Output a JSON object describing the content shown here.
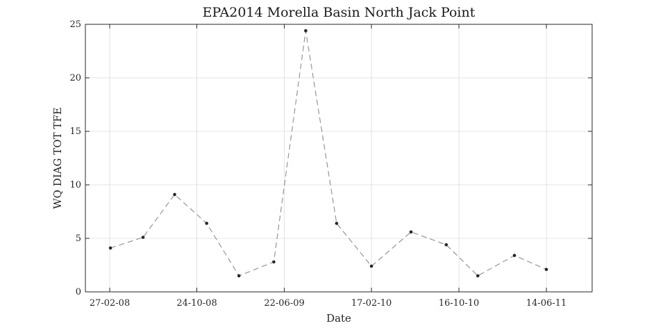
{
  "chart_data": {
    "type": "line",
    "title": "EPA2014 Morella Basin North Jack Point",
    "xlabel": "Date",
    "ylabel": "WQ DIAG TOT TFE",
    "x_axis_type": "date",
    "date_format": "DD-MM-YY",
    "xlim": [
      "2007-12-22",
      "2011-10-18"
    ],
    "ylim": [
      0,
      25
    ],
    "x_ticks": [
      "27-02-08",
      "24-10-08",
      "22-06-09",
      "17-02-10",
      "16-10-10",
      "14-06-11"
    ],
    "x_tick_dates": [
      "2008-02-27",
      "2008-10-24",
      "2009-06-22",
      "2010-02-17",
      "2010-10-16",
      "2011-06-14"
    ],
    "y_ticks": [
      0,
      5,
      10,
      15,
      20,
      25
    ],
    "grid": true,
    "series": [
      {
        "line_style": "dashed",
        "marker": "dot",
        "color": "#8c8c8c",
        "marker_color": "#262626",
        "points": [
          {
            "x": "2008-02-29",
            "y": 4.1
          },
          {
            "x": "2008-05-29",
            "y": 5.1
          },
          {
            "x": "2008-08-24",
            "y": 9.1
          },
          {
            "x": "2008-11-20",
            "y": 6.4
          },
          {
            "x": "2009-02-17",
            "y": 1.5
          },
          {
            "x": "2009-05-24",
            "y": 2.8
          },
          {
            "x": "2009-08-20",
            "y": 24.4
          },
          {
            "x": "2009-11-13",
            "y": 6.4
          },
          {
            "x": "2010-02-17",
            "y": 2.4
          },
          {
            "x": "2010-06-06",
            "y": 5.6
          },
          {
            "x": "2010-09-11",
            "y": 4.4
          },
          {
            "x": "2010-12-07",
            "y": 1.5
          },
          {
            "x": "2011-03-18",
            "y": 3.4
          },
          {
            "x": "2011-06-14",
            "y": 2.1
          }
        ]
      }
    ]
  }
}
